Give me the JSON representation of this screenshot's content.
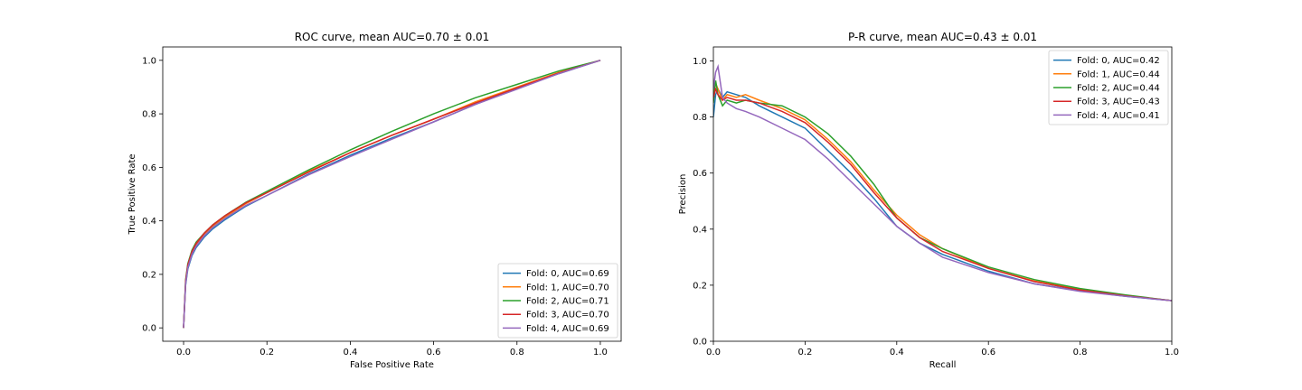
{
  "chart_data": [
    {
      "type": "line",
      "title": "ROC curve, mean AUC=0.70 ± 0.01",
      "xlabel": "False Positive Rate",
      "ylabel": "True Positive Rate",
      "xlim": [
        -0.05,
        1.05
      ],
      "ylim": [
        -0.05,
        1.05
      ],
      "xticks": [
        "0.0",
        "0.2",
        "0.4",
        "0.6",
        "0.8",
        "1.0"
      ],
      "yticks": [
        "0.0",
        "0.2",
        "0.4",
        "0.6",
        "0.8",
        "1.0"
      ],
      "legend_position": "lower-right",
      "grid": false,
      "series": [
        {
          "name": "Fold: 0, AUC=0.69",
          "color": "#1f77b4",
          "x": [
            0,
            0.005,
            0.01,
            0.02,
            0.03,
            0.05,
            0.07,
            0.1,
            0.15,
            0.2,
            0.3,
            0.4,
            0.5,
            0.6,
            0.7,
            0.8,
            0.9,
            1.0
          ],
          "y": [
            0,
            0.16,
            0.22,
            0.27,
            0.3,
            0.34,
            0.37,
            0.405,
            0.455,
            0.495,
            0.575,
            0.645,
            0.71,
            0.77,
            0.835,
            0.895,
            0.95,
            1.0
          ]
        },
        {
          "name": "Fold: 1, AUC=0.70",
          "color": "#ff7f0e",
          "x": [
            0,
            0.005,
            0.01,
            0.02,
            0.03,
            0.05,
            0.07,
            0.1,
            0.15,
            0.2,
            0.3,
            0.4,
            0.5,
            0.6,
            0.7,
            0.8,
            0.9,
            1.0
          ],
          "y": [
            0,
            0.17,
            0.23,
            0.28,
            0.31,
            0.35,
            0.38,
            0.415,
            0.465,
            0.505,
            0.585,
            0.655,
            0.72,
            0.78,
            0.845,
            0.9,
            0.955,
            1.0
          ]
        },
        {
          "name": "Fold: 2, AUC=0.71",
          "color": "#2ca02c",
          "x": [
            0,
            0.005,
            0.01,
            0.02,
            0.03,
            0.05,
            0.07,
            0.1,
            0.15,
            0.2,
            0.3,
            0.4,
            0.5,
            0.6,
            0.7,
            0.8,
            0.9,
            1.0
          ],
          "y": [
            0,
            0.18,
            0.24,
            0.29,
            0.32,
            0.355,
            0.385,
            0.42,
            0.47,
            0.51,
            0.59,
            0.665,
            0.735,
            0.8,
            0.86,
            0.91,
            0.96,
            1.0
          ]
        },
        {
          "name": "Fold: 3, AUC=0.70",
          "color": "#d62728",
          "x": [
            0,
            0.005,
            0.01,
            0.02,
            0.03,
            0.05,
            0.07,
            0.1,
            0.15,
            0.2,
            0.3,
            0.4,
            0.5,
            0.6,
            0.7,
            0.8,
            0.9,
            1.0
          ],
          "y": [
            0,
            0.175,
            0.235,
            0.285,
            0.315,
            0.355,
            0.385,
            0.42,
            0.468,
            0.505,
            0.582,
            0.655,
            0.72,
            0.78,
            0.84,
            0.897,
            0.952,
            1.0
          ]
        },
        {
          "name": "Fold: 4, AUC=0.69",
          "color": "#9467bd",
          "x": [
            0,
            0.005,
            0.01,
            0.02,
            0.03,
            0.05,
            0.07,
            0.1,
            0.15,
            0.2,
            0.3,
            0.4,
            0.5,
            0.6,
            0.7,
            0.8,
            0.9,
            1.0
          ],
          "y": [
            0,
            0.165,
            0.225,
            0.275,
            0.305,
            0.345,
            0.375,
            0.41,
            0.458,
            0.495,
            0.572,
            0.64,
            0.705,
            0.77,
            0.835,
            0.892,
            0.95,
            1.0
          ]
        }
      ]
    },
    {
      "type": "line",
      "title": "P-R curve, mean AUC=0.43 ± 0.01",
      "xlabel": "Recall",
      "ylabel": "Precision",
      "xlim": [
        0,
        1
      ],
      "ylim": [
        0,
        1.05
      ],
      "xticks": [
        "0.0",
        "0.2",
        "0.4",
        "0.6",
        "0.8",
        "1.0"
      ],
      "yticks": [
        "0.0",
        "0.2",
        "0.4",
        "0.6",
        "0.8",
        "1.0"
      ],
      "legend_position": "upper-right",
      "grid": false,
      "series": [
        {
          "name": "Fold: 0, AUC=0.42",
          "color": "#1f77b4",
          "x": [
            0,
            0.005,
            0.01,
            0.02,
            0.03,
            0.05,
            0.07,
            0.1,
            0.15,
            0.2,
            0.25,
            0.3,
            0.35,
            0.4,
            0.45,
            0.5,
            0.6,
            0.7,
            0.8,
            0.9,
            1.0
          ],
          "y": [
            0.8,
            0.88,
            0.9,
            0.87,
            0.89,
            0.88,
            0.87,
            0.84,
            0.8,
            0.76,
            0.68,
            0.6,
            0.51,
            0.41,
            0.35,
            0.31,
            0.25,
            0.205,
            0.18,
            0.16,
            0.145
          ]
        },
        {
          "name": "Fold: 1, AUC=0.44",
          "color": "#ff7f0e",
          "x": [
            0,
            0.005,
            0.01,
            0.02,
            0.03,
            0.05,
            0.07,
            0.1,
            0.15,
            0.2,
            0.25,
            0.3,
            0.35,
            0.4,
            0.45,
            0.5,
            0.6,
            0.7,
            0.8,
            0.9,
            1.0
          ],
          "y": [
            0.88,
            0.92,
            0.9,
            0.86,
            0.88,
            0.87,
            0.88,
            0.86,
            0.83,
            0.79,
            0.72,
            0.64,
            0.54,
            0.45,
            0.38,
            0.33,
            0.26,
            0.215,
            0.185,
            0.163,
            0.145
          ]
        },
        {
          "name": "Fold: 2, AUC=0.44",
          "color": "#2ca02c",
          "x": [
            0,
            0.005,
            0.01,
            0.02,
            0.03,
            0.05,
            0.07,
            0.1,
            0.15,
            0.2,
            0.25,
            0.3,
            0.35,
            0.4,
            0.45,
            0.5,
            0.6,
            0.7,
            0.8,
            0.9,
            1.0
          ],
          "y": [
            0.85,
            0.93,
            0.88,
            0.84,
            0.86,
            0.85,
            0.86,
            0.85,
            0.84,
            0.8,
            0.74,
            0.66,
            0.56,
            0.44,
            0.37,
            0.33,
            0.265,
            0.22,
            0.188,
            0.165,
            0.145
          ]
        },
        {
          "name": "Fold: 3, AUC=0.43",
          "color": "#d62728",
          "x": [
            0,
            0.005,
            0.01,
            0.02,
            0.03,
            0.05,
            0.07,
            0.1,
            0.15,
            0.2,
            0.25,
            0.3,
            0.35,
            0.4,
            0.45,
            0.5,
            0.6,
            0.7,
            0.8,
            0.9,
            1.0
          ],
          "y": [
            0.87,
            0.9,
            0.88,
            0.86,
            0.87,
            0.86,
            0.86,
            0.85,
            0.82,
            0.78,
            0.71,
            0.63,
            0.53,
            0.44,
            0.37,
            0.32,
            0.26,
            0.213,
            0.183,
            0.162,
            0.145
          ]
        },
        {
          "name": "Fold: 4, AUC=0.41",
          "color": "#9467bd",
          "x": [
            0,
            0.005,
            0.01,
            0.02,
            0.03,
            0.05,
            0.07,
            0.1,
            0.15,
            0.2,
            0.25,
            0.3,
            0.35,
            0.4,
            0.45,
            0.5,
            0.6,
            0.7,
            0.8,
            0.9,
            1.0
          ],
          "y": [
            0.9,
            0.96,
            0.98,
            0.87,
            0.85,
            0.83,
            0.82,
            0.8,
            0.76,
            0.72,
            0.65,
            0.57,
            0.49,
            0.41,
            0.35,
            0.3,
            0.245,
            0.205,
            0.178,
            0.16,
            0.145
          ]
        }
      ]
    }
  ]
}
